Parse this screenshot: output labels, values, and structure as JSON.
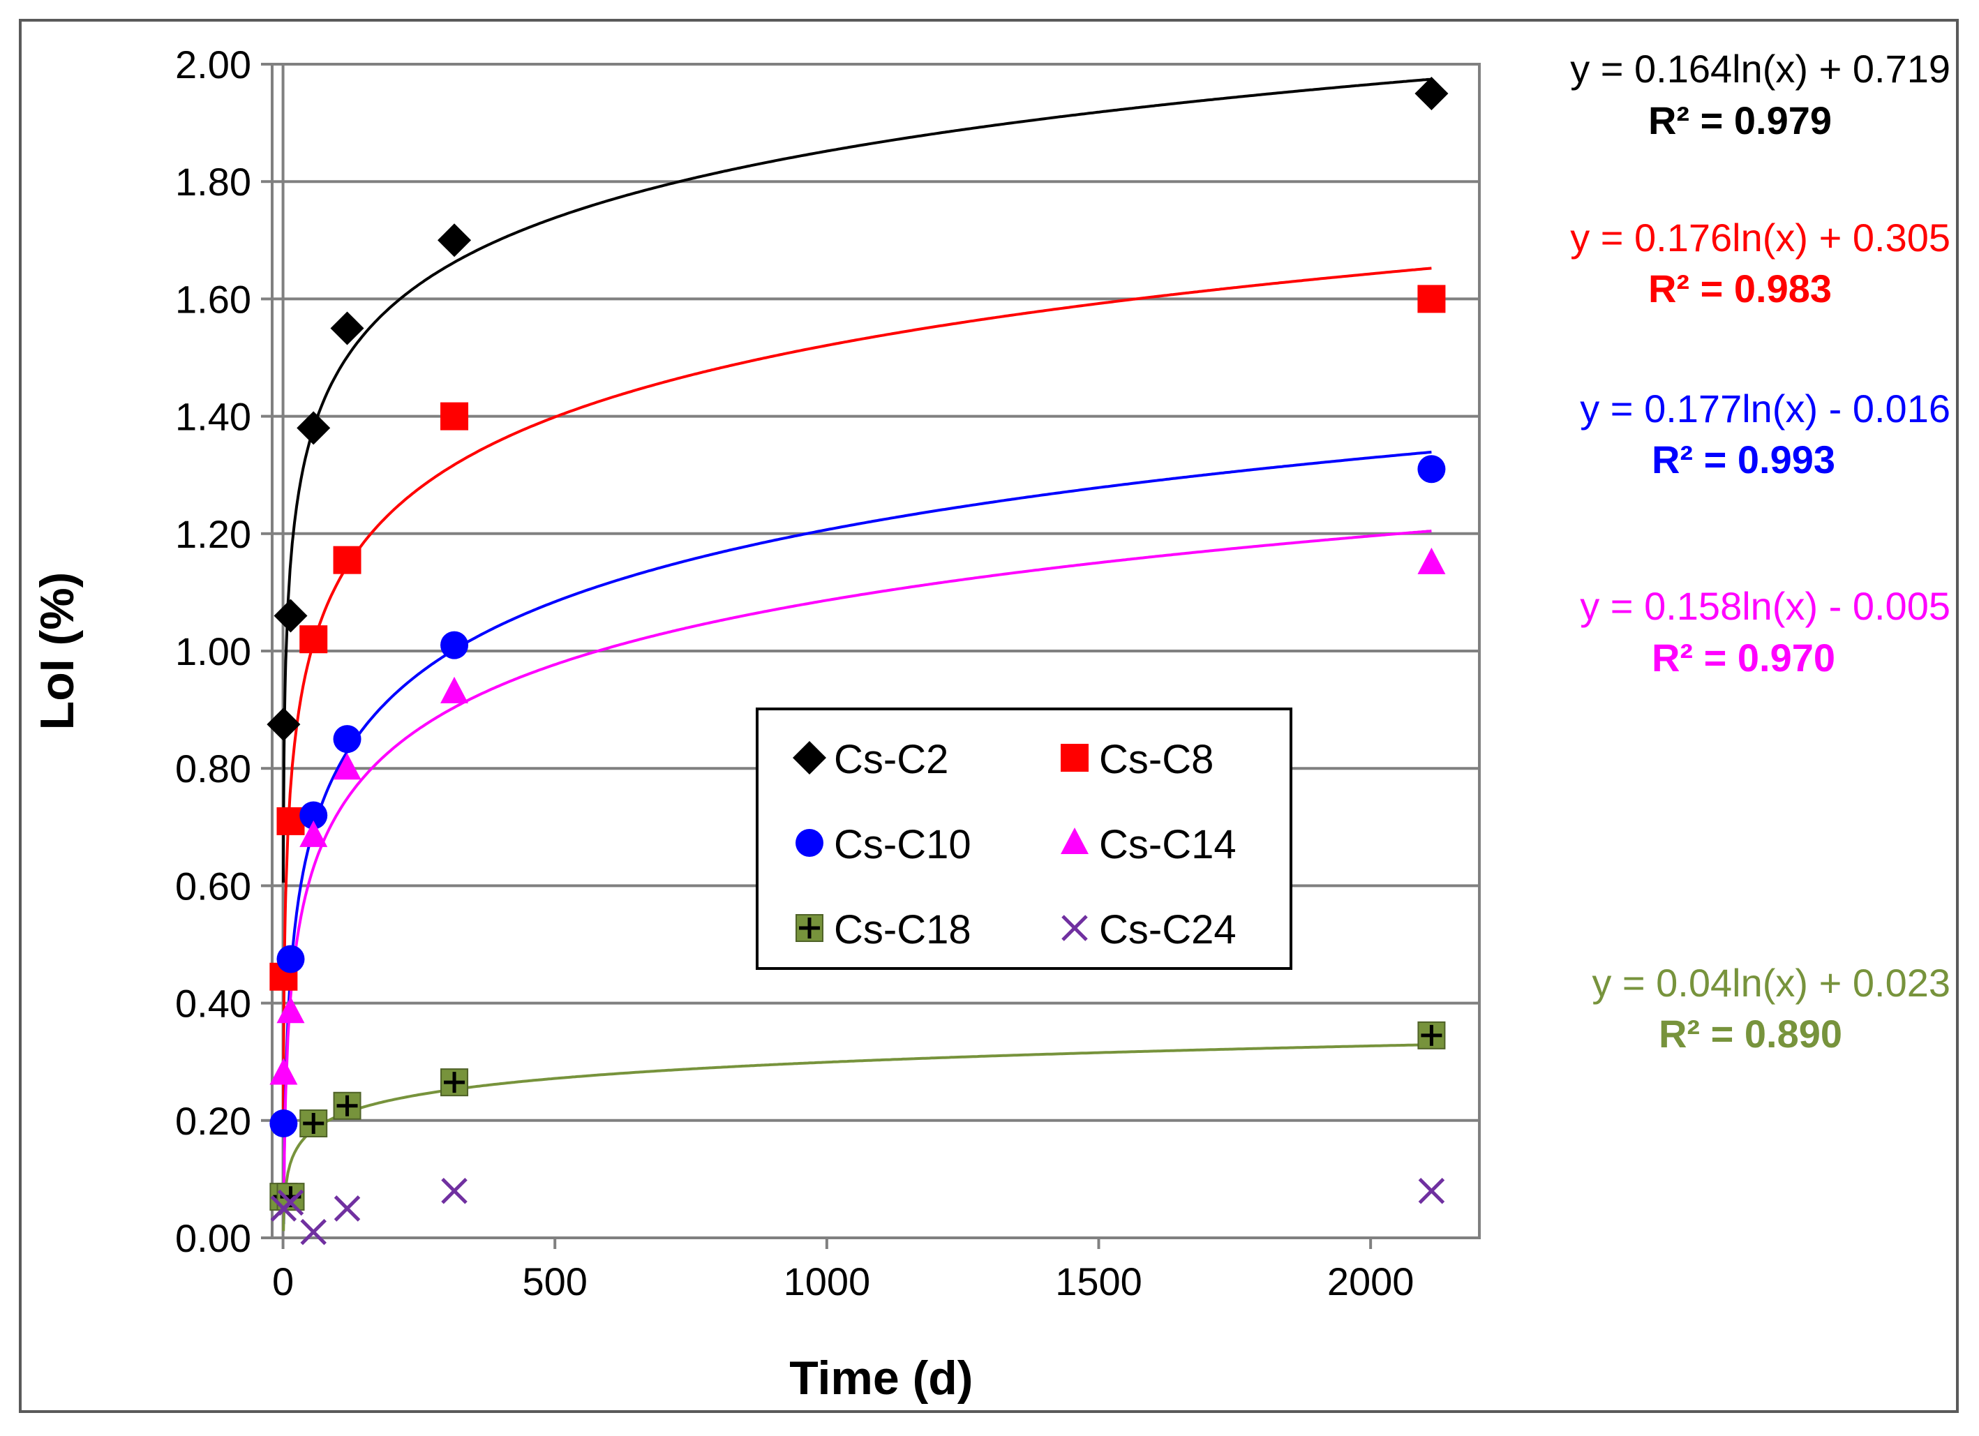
{
  "chart_data": {
    "type": "scatter",
    "title": "",
    "xlabel": "Time (d)",
    "ylabel": "LoI (%)",
    "xlim": [
      -20,
      2200
    ],
    "ylim": [
      0,
      2.0
    ],
    "xticks": [
      0,
      500,
      1000,
      1500,
      2000
    ],
    "yticks": [
      0,
      0.2,
      0.4,
      0.6,
      0.8,
      1.0,
      1.2,
      1.4,
      1.6,
      1.8,
      2.0
    ],
    "xtick_labels": [
      "0",
      "500",
      "1000",
      "1500",
      "2000"
    ],
    "ytick_labels": [
      "0.00",
      "0.20",
      "0.40",
      "0.60",
      "0.80",
      "1.00",
      "1.20",
      "1.40",
      "1.60",
      "1.80",
      "2.00"
    ],
    "grid": "horizontal",
    "legend_position": "center",
    "series": [
      {
        "name": "Cs-C2",
        "color": "#000000",
        "marker": "diamond",
        "x": [
          1,
          14,
          56,
          118,
          315,
          2112
        ],
        "y": [
          0.875,
          1.06,
          1.38,
          1.55,
          1.7,
          1.95
        ],
        "fit": {
          "a": 0.164,
          "b": 0.719,
          "x_end": 2112
        },
        "equation": "y = 0.164ln(x)  + 0.719",
        "r2": "R² = 0.979"
      },
      {
        "name": "Cs-C8",
        "color": "#ff0000",
        "marker": "square",
        "x": [
          1,
          14,
          56,
          118,
          315,
          2112
        ],
        "y": [
          0.445,
          0.71,
          1.02,
          1.155,
          1.4,
          1.6
        ],
        "fit": {
          "a": 0.176,
          "b": 0.305,
          "x_end": 2112
        },
        "equation": "y = 0.176ln(x)  + 0.305",
        "r2": "R² = 0.983"
      },
      {
        "name": "Cs-C10",
        "color": "#0000ff",
        "marker": "circle",
        "x": [
          1,
          14,
          56,
          118,
          315,
          2112
        ],
        "y": [
          0.195,
          0.475,
          0.72,
          0.85,
          1.01,
          1.31
        ],
        "fit": {
          "a": 0.177,
          "b": -0.016,
          "x_end": 2112
        },
        "equation": "y = 0.177ln(x)  - 0.016",
        "r2": "R² = 0.993"
      },
      {
        "name": "Cs-C14",
        "color": "#ff00ff",
        "marker": "triangle",
        "x": [
          1,
          14,
          56,
          118,
          315,
          2112
        ],
        "y": [
          0.28,
          0.385,
          0.685,
          0.8,
          0.93,
          1.15
        ],
        "fit": {
          "a": 0.158,
          "b": -0.005,
          "x_end": 2112
        },
        "equation": "y = 0.158ln(x)  - 0.005",
        "r2": "R² = 0.970"
      },
      {
        "name": "Cs-C18",
        "color": "#77933c",
        "marker": "plus-square",
        "x": [
          1,
          14,
          56,
          118,
          315,
          2112
        ],
        "y": [
          0.07,
          0.07,
          0.195,
          0.225,
          0.265,
          0.345
        ],
        "fit": {
          "a": 0.04,
          "b": 0.023,
          "x_end": 2112
        },
        "equation": "y = 0.04ln(x)  + 0.023",
        "r2": "R² = 0.890"
      },
      {
        "name": "Cs-C24",
        "color": "#7030a0",
        "marker": "x",
        "x": [
          1,
          14,
          56,
          118,
          315,
          2112
        ],
        "y": [
          0.05,
          0.06,
          0.01,
          0.05,
          0.08,
          0.08
        ]
      }
    ]
  }
}
